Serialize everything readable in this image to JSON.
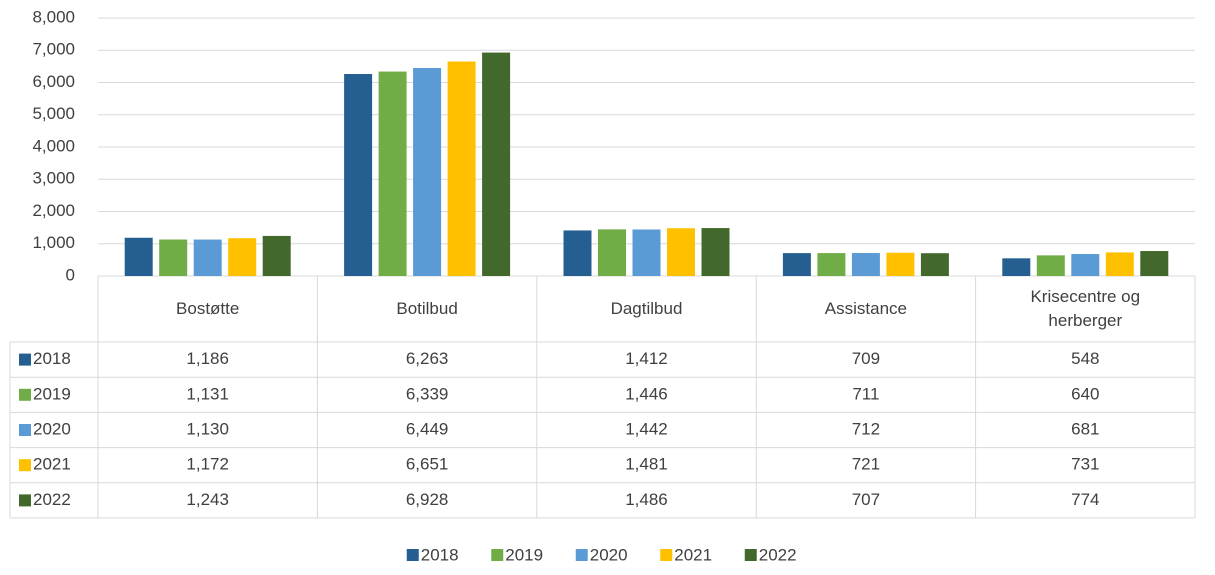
{
  "chart_data": {
    "type": "bar",
    "categories": [
      "Bostøtte",
      "Botilbud",
      "Dagtilbud",
      "Assistance",
      "Krisecentre og herberger"
    ],
    "series": [
      {
        "name": "2018",
        "color": "#255e91",
        "values": [
          1186,
          6263,
          1412,
          709,
          548
        ],
        "value_labels": [
          "1,186",
          "6,263",
          "1,412",
          "709",
          "548"
        ]
      },
      {
        "name": "2019",
        "color": "#70ad47",
        "values": [
          1131,
          6339,
          1446,
          711,
          640
        ],
        "value_labels": [
          "1,131",
          "6,339",
          "1,446",
          "711",
          "640"
        ]
      },
      {
        "name": "2020",
        "color": "#5b9bd5",
        "values": [
          1130,
          6449,
          1442,
          712,
          681
        ],
        "value_labels": [
          "1,130",
          "6,449",
          "1,442",
          "712",
          "681"
        ]
      },
      {
        "name": "2021",
        "color": "#ffc000",
        "values": [
          1172,
          6651,
          1481,
          721,
          731
        ],
        "value_labels": [
          "1,172",
          "6,651",
          "1,481",
          "721",
          "731"
        ]
      },
      {
        "name": "2022",
        "color": "#43682b",
        "values": [
          1243,
          6928,
          1486,
          707,
          774
        ],
        "value_labels": [
          "1,243",
          "6,928",
          "1,486",
          "707",
          "774"
        ]
      }
    ],
    "ylim": [
      0,
      8000
    ],
    "yticks": [
      0,
      {
        "value": 1000,
        "label": "1,000"
      },
      {
        "value": 2000,
        "label": "2,000"
      },
      {
        "value": 3000,
        "label": "3,000"
      },
      {
        "value": 4000,
        "label": "4,000"
      },
      {
        "value": 5000,
        "label": "5,000"
      },
      {
        "value": 6000,
        "label": "6,000"
      },
      {
        "value": 7000,
        "label": "7,000"
      },
      {
        "value": 8000,
        "label": "8,000"
      }
    ],
    "grid": true,
    "legend": "bottom"
  }
}
